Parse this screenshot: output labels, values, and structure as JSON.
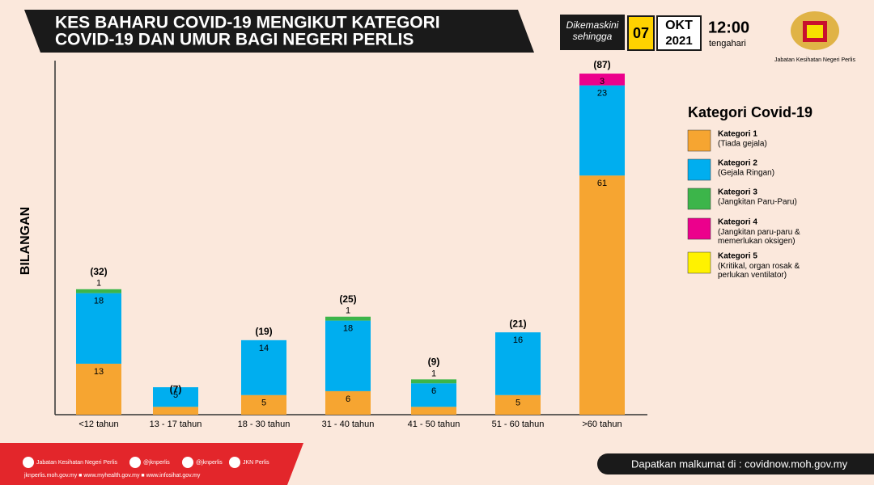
{
  "header": {
    "title_lines": [
      "KES BAHARU COVID-19 MENGIKUT KATEGORI",
      "COVID-19 DAN UMUR BAGI NEGERI PERLIS"
    ],
    "updated_lines": [
      "Dikemaskini",
      "sehingga"
    ],
    "day": "07",
    "month": "OKT",
    "year": "2021",
    "time": "12:00",
    "time_label": "tengahari",
    "org": "Jabatan Kesihatan Negeri Perlis"
  },
  "chart_data": {
    "type": "stacked_bar",
    "y_label": "BILANGAN",
    "categories": [
      "<12 tahun",
      "13 - 17 tahun",
      "18 - 30 tahun",
      "31 - 40 tahun",
      "41 - 50 tahun",
      "51 - 60 tahun",
      ">60 tahun"
    ],
    "ylim": [
      0,
      90
    ],
    "legend_title": "Kategori Covid-19",
    "series": [
      {
        "name": "Kategori 1",
        "description": "(Tiada gejala)",
        "color": "#f6a531",
        "values": [
          13,
          2,
          5,
          6,
          2,
          5,
          61
        ]
      },
      {
        "name": "Kategori 2",
        "description": "(Gejala Ringan)",
        "color": "#00aeef",
        "values": [
          18,
          5,
          14,
          18,
          6,
          16,
          23
        ]
      },
      {
        "name": "Kategori 3",
        "description": "(Jangkitan Paru-Paru)",
        "color": "#3cb54a",
        "values": [
          1,
          0,
          0,
          1,
          1,
          0,
          0
        ]
      },
      {
        "name": "Kategori 4",
        "description": "(Jangkitan paru-paru & memerlukan oksigen)",
        "color": "#ec008c",
        "values": [
          0,
          0,
          0,
          0,
          0,
          0,
          3
        ]
      },
      {
        "name": "Kategori 5",
        "description": "(Kritikal, organ rosak & perlukan ventilator)",
        "color": "#fff200",
        "values": [
          0,
          0,
          0,
          0,
          0,
          0,
          0
        ]
      }
    ],
    "totals": {
      "values": [
        32,
        7,
        19,
        25,
        9,
        21,
        87
      ],
      "value_labels": [
        "(32)",
        "(7)",
        "(19)",
        "(25)",
        "(9)",
        "(21)",
        "(87)"
      ]
    }
  },
  "footer": {
    "social": [
      "Jabatan Kesihatan Negeri Perlis",
      "@jknperlis",
      "@jknperlis",
      "JKN Perlis"
    ],
    "links": "jknperlis.moh.gov.my ■ www.myhealth.gov.my ■ www.infosihat.gov.my",
    "source": "Dapatkan malkumat di : covidnow.moh.gov.my"
  }
}
